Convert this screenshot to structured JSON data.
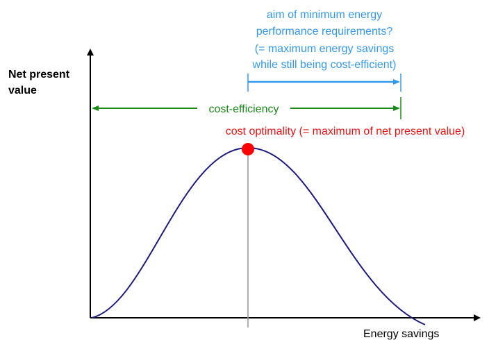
{
  "axes": {
    "y_label": [
      "Net present",
      "value"
    ],
    "x_label": "Energy savings"
  },
  "annotations": {
    "aim": [
      "aim of minimum energy",
      "performance requirements?",
      "(= maximum energy savings",
      "while still being cost-efficient)"
    ],
    "cost_efficiency": "cost-efficiency",
    "cost_optimality": "cost optimality (= maximum of net present value)"
  }
}
